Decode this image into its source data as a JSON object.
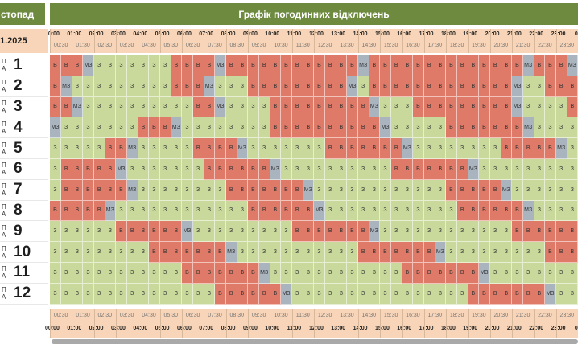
{
  "header": {
    "month": "стопад",
    "title": "Графік погодинних відключень",
    "date": "1.2025"
  },
  "hours": [
    "00:00",
    "01:00",
    "02:00",
    "03:00",
    "04:00",
    "05:00",
    "06:00",
    "07:00",
    "08:00",
    "09:00",
    "10:00",
    "11:00",
    "12:00",
    "13:00",
    "14:00",
    "15:00",
    "16:00",
    "17:00",
    "18:00",
    "19:00",
    "20:00",
    "21:00",
    "22:00",
    "23:00",
    "00:"
  ],
  "halves": [
    "00:30",
    "01:30",
    "02:30",
    "03:30",
    "04:30",
    "05:30",
    "06:30",
    "07:30",
    "08:30",
    "09:30",
    "10:30",
    "11:30",
    "12:30",
    "13:30",
    "14:30",
    "15:30",
    "16:30",
    "17:30",
    "18:30",
    "19:30",
    "20:30",
    "21:30",
    "22:30",
    "23:30"
  ],
  "legend": {
    "on": {
      "label": "З",
      "color": "#c9d99c"
    },
    "off": {
      "label": "В",
      "color": "#df7a68"
    },
    "maybe": {
      "label": "МЗ",
      "color": "#a9b4bf"
    }
  },
  "queues": [
    {
      "prefix": "П А",
      "number": "1",
      "slots": "BBBMZZZZZZZZBBBBMZBBBBBBBBBBBBMZBBBBBBBBBBBBBBMZBBBMZBBBBBBBMZBB"
    },
    {
      "prefix": "П А",
      "number": "2",
      "slots": "BMZZZZZZZZZZBBBMZZZZBBBBBBBBBMZZBBBBBBBBBBBBBMZZZBBBBBBBBBBMZZZ"
    },
    {
      "prefix": "П А",
      "number": "3",
      "slots": "BBMZZZZZZZZZZZBBMZZZZZBBBBBBBBBMZZZZBBBBBBBBBMZZZZZBBBBBBBBMZZZ"
    },
    {
      "prefix": "П А",
      "number": "4",
      "slots": "MZZZZZZZZBBBMZZZZZZZZZBBBBBBBBBBMZZZZZZBBBBBBBMZZZZZZZBBBBBBBBMZ"
    },
    {
      "prefix": "П А",
      "number": "5",
      "slots": "ZZZZZBBMZZZZZZBBBBMZZZZZZZZBBBBBBBMZZZZZZZZZBBBBBMZZZZZZZZBBBBBB"
    },
    {
      "prefix": "П А",
      "number": "6",
      "slots": "ZBBBBBMZZZZZZZZBBBBBBMZZZZZZZZZZZBBBBBBBMZZZZZZZZZZBBBBBBMZZZZZB"
    },
    {
      "prefix": "П А",
      "number": "7",
      "slots": "ZBBBBBBMZZZZZZZZZBBBBBBBMZZZZZZZZZZZZZBBBBBMZZZZZZZZZBBBBBMZZZZZ"
    },
    {
      "prefix": "П А",
      "number": "8",
      "slots": "BBBBBMZZZZZZZZZZZZZBBBBBBMZZZZZZZZZZZZZBBBBBBMZZZZZZZZZBBBBBMZZZ"
    },
    {
      "prefix": "П А",
      "number": "9",
      "slots": "ZZZZZZBBBBBBMZZZZZZZZZZBBBBBBBMZZZZZZZZZZZZZBBBBBBMZZZZZZZZZZBBB"
    },
    {
      "prefix": "П А",
      "number": "10",
      "slots": "ZZZZZZZZZBBBBBBBMZZZZZZZZZZZZBBBBBBBMZZZZZZZZZZBBBBBBBMZZZZZZZZZ"
    },
    {
      "prefix": "П А",
      "number": "11",
      "slots": "ZZZZZZZZZZZZBBBBBBBMZZZZZZZZZZZZZBBBBBBBMZZZZZZZZZZZZZBBBBBBMZZZ"
    },
    {
      "prefix": "П А",
      "number": "12",
      "slots": "ZZZZZZZZZZZZZZZBBBBBBMZZZZZZZZZZZZZZZZZBBBBBBBMZZZZZZZZZZZZBBBBBB"
    }
  ]
}
